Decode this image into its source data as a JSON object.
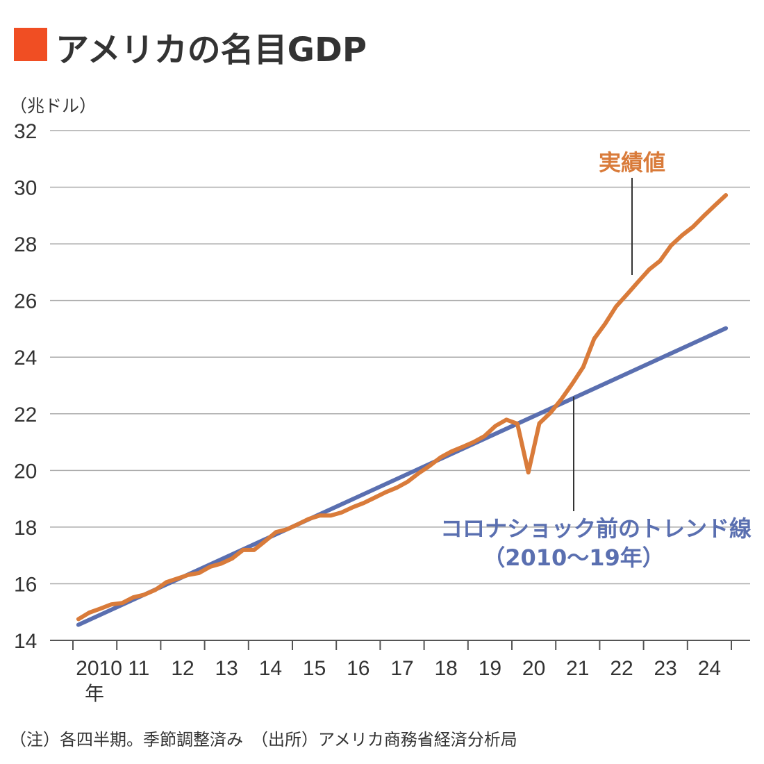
{
  "title": "アメリカの名目GDP",
  "unit_label": "（兆ドル）",
  "note": "（注）各四半期。季節調整済み　（出所）アメリカ商務省経済分析局",
  "colors": {
    "title_marker": "#f04e23",
    "actual": "#d97b3a",
    "trend": "#5a6fb0",
    "grid": "#aaaaaa",
    "text": "#333333"
  },
  "chart_data": {
    "type": "line",
    "title": "アメリカの名目GDP",
    "ylabel": "（兆ドル）",
    "ylim": [
      14,
      32
    ],
    "y_ticks": [
      "14",
      "16",
      "18",
      "20",
      "22",
      "24",
      "26",
      "28",
      "30",
      "32"
    ],
    "x_ticks": [
      "2010",
      "11",
      "12",
      "13",
      "14",
      "15",
      "16",
      "17",
      "18",
      "19",
      "20",
      "21",
      "22",
      "23",
      "24"
    ],
    "x_first_sublabel": "年",
    "grid": "horizontal",
    "series": [
      {
        "name": "実績値",
        "x_quarters": [
          "2010Q1",
          "2010Q2",
          "2010Q3",
          "2010Q4",
          "2011Q1",
          "2011Q2",
          "2011Q3",
          "2011Q4",
          "2012Q1",
          "2012Q2",
          "2012Q3",
          "2012Q4",
          "2013Q1",
          "2013Q2",
          "2013Q3",
          "2013Q4",
          "2014Q1",
          "2014Q2",
          "2014Q3",
          "2014Q4",
          "2015Q1",
          "2015Q2",
          "2015Q3",
          "2015Q4",
          "2016Q1",
          "2016Q2",
          "2016Q3",
          "2016Q4",
          "2017Q1",
          "2017Q2",
          "2017Q3",
          "2017Q4",
          "2018Q1",
          "2018Q2",
          "2018Q3",
          "2018Q4",
          "2019Q1",
          "2019Q2",
          "2019Q3",
          "2019Q4",
          "2020Q1",
          "2020Q2",
          "2020Q3",
          "2020Q4",
          "2021Q1",
          "2021Q2",
          "2021Q3",
          "2021Q4",
          "2022Q1",
          "2022Q2",
          "2022Q3",
          "2022Q4",
          "2023Q1",
          "2023Q2",
          "2023Q3",
          "2023Q4",
          "2024Q1",
          "2024Q2",
          "2024Q3",
          "2024Q4"
        ],
        "values": [
          14.75,
          14.98,
          15.12,
          15.27,
          15.32,
          15.52,
          15.61,
          15.78,
          16.05,
          16.18,
          16.31,
          16.38,
          16.6,
          16.71,
          16.89,
          17.19,
          17.19,
          17.5,
          17.82,
          17.92,
          18.1,
          18.29,
          18.41,
          18.41,
          18.52,
          18.7,
          18.85,
          19.04,
          19.23,
          19.39,
          19.6,
          19.9,
          20.16,
          20.46,
          20.67,
          20.83,
          21.0,
          21.21,
          21.57,
          21.79,
          21.65,
          19.93,
          21.66,
          22.03,
          22.51,
          23.06,
          23.65,
          24.65,
          25.18,
          25.79,
          26.22,
          26.66,
          27.09,
          27.4,
          27.94,
          28.3,
          28.6,
          28.99,
          29.36,
          29.72
        ]
      },
      {
        "name": "コロナショック前のトレンド線",
        "sublabel": "（2010～19年）",
        "x_range": [
          "2010Q1",
          "2024Q4"
        ],
        "values": [
          14.55,
          25.02
        ]
      }
    ]
  }
}
